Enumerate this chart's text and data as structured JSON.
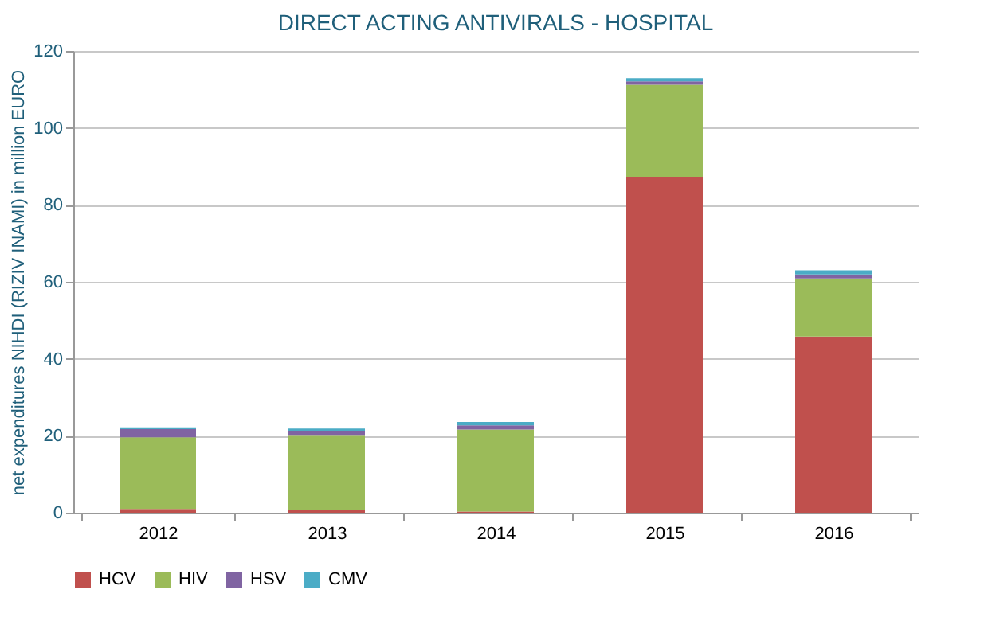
{
  "chart_data": {
    "type": "bar",
    "title": "DIRECT ACTING ANTIVIRALS - HOSPITAL",
    "ylabel": "net expenditures NIHDI (RIZIV INAMI) in million EURO",
    "categories": [
      "2012",
      "2013",
      "2014",
      "2015",
      "2016"
    ],
    "stacked": true,
    "series": [
      {
        "name": "HCV",
        "color": "#c0504d",
        "values": [
          1.0,
          0.6,
          0.3,
          87.3,
          45.8
        ]
      },
      {
        "name": "HIV",
        "color": "#9bbb59",
        "values": [
          18.6,
          19.4,
          21.3,
          23.9,
          15.1
        ]
      },
      {
        "name": "HSV",
        "color": "#8064a2",
        "values": [
          2.1,
          1.3,
          1.1,
          0.9,
          1.0
        ]
      },
      {
        "name": "CMV",
        "color": "#4bacc6",
        "values": [
          0.5,
          0.6,
          0.9,
          0.8,
          1.1
        ]
      }
    ],
    "ylim": [
      0,
      120
    ],
    "yticks": [
      0,
      20,
      40,
      60,
      80,
      100,
      120
    ],
    "grid": "y",
    "legend": "bottom"
  }
}
